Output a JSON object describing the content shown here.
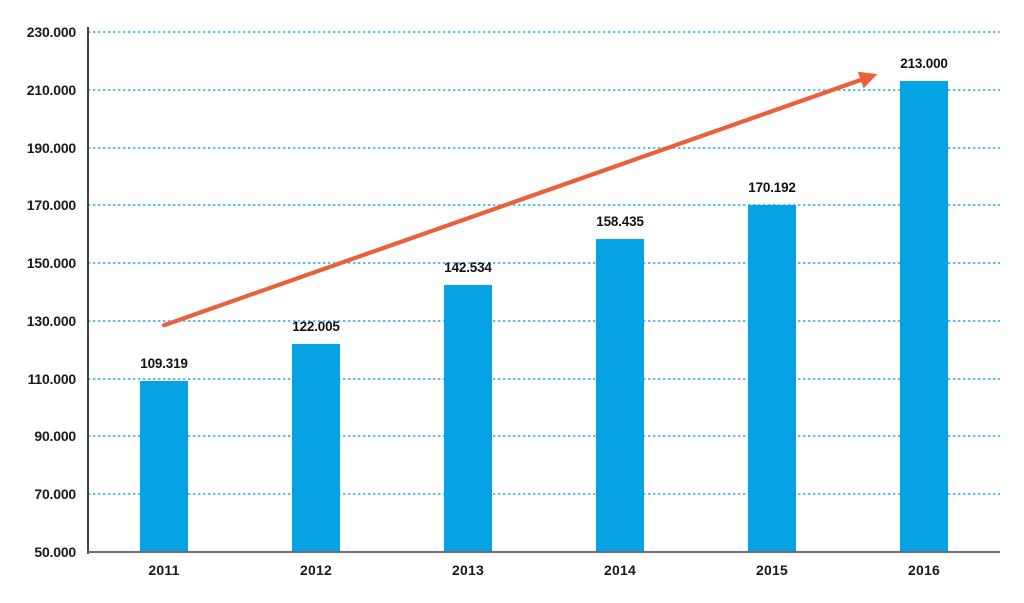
{
  "chart_data": {
    "type": "bar",
    "categories": [
      "2011",
      "2012",
      "2013",
      "2014",
      "2015",
      "2016"
    ],
    "values": [
      109319,
      122005,
      142534,
      158435,
      170192,
      213000
    ],
    "value_labels": [
      "109.319",
      "122.005",
      "142.534",
      "158.435",
      "170.192",
      "213.000"
    ],
    "title": "",
    "xlabel": "",
    "ylabel": "",
    "ylim": [
      50000,
      230000
    ],
    "ytick_step": 20000,
    "ytick_labels": [
      "50.000",
      "70.000",
      "90.000",
      "110.000",
      "130.000",
      "150.000",
      "170.000",
      "190.000",
      "210.000",
      "230.000"
    ],
    "grid": "horizontal-dotted",
    "legend": "none",
    "colors": {
      "bar": "#06A3E4",
      "grid": "#55C1ED",
      "axis_y": "#414042",
      "axis_x": "#6D6E71",
      "label": "#1A1A1A",
      "trend_arrow": "#EB5F3B"
    },
    "trend_arrow": {
      "start": {
        "category_index": 0.0,
        "value": 128500
      },
      "end": {
        "category_index": 4.66,
        "value": 214800
      }
    }
  }
}
